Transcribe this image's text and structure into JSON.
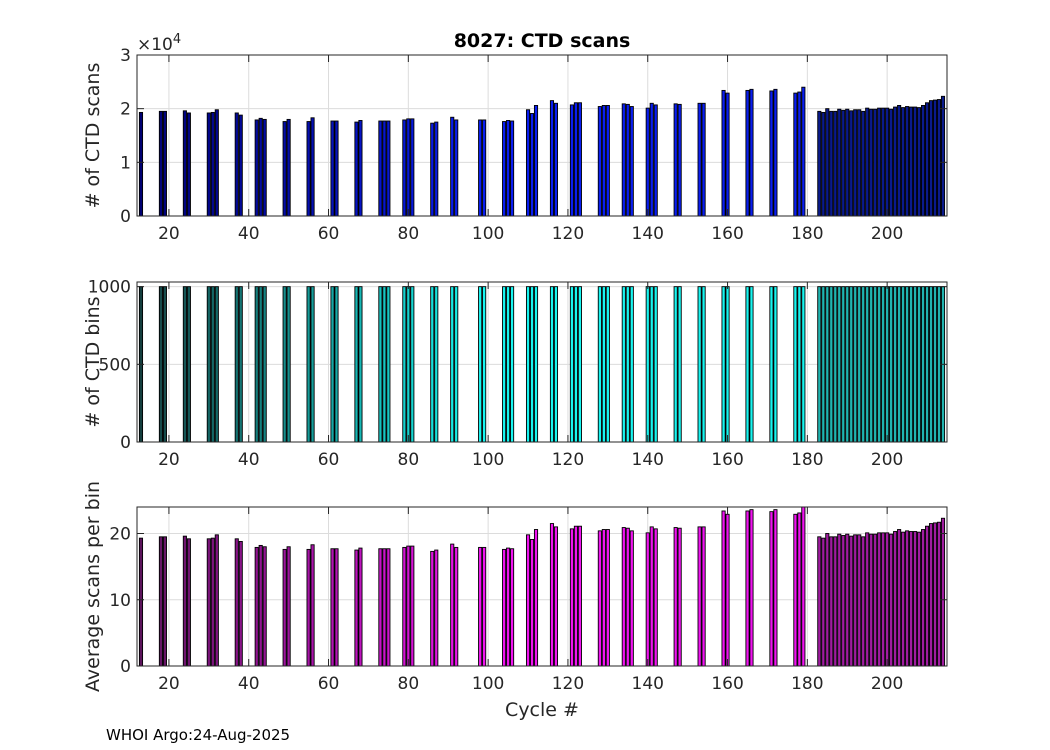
{
  "footer": "WHOI Argo:24-Aug-2025",
  "chart_data": [
    {
      "type": "bar",
      "title": "8027: CTD scans",
      "ylabel": "# of CTD scans",
      "xlabel": "",
      "xlim": [
        12,
        215
      ],
      "ylim": [
        0,
        3
      ],
      "yticks": [
        0,
        1,
        2,
        3
      ],
      "ytick_labels": [
        "0",
        "1",
        "2",
        "3"
      ],
      "xticks": [
        20,
        40,
        60,
        80,
        100,
        120,
        140,
        160,
        180,
        200
      ],
      "xtick_labels": [
        "20",
        "40",
        "60",
        "80",
        "100",
        "120",
        "140",
        "160",
        "180",
        "200"
      ],
      "exponent_label": "×10",
      "exponent_power": "4",
      "grid": true,
      "series": [
        {
          "name": "CTD scans",
          "color_start": "#000070",
          "color_mid": "#0a1ef0",
          "color_end": "#0a1a8c",
          "x": [
            13,
            18,
            19,
            24,
            25,
            30,
            31,
            32,
            37,
            38,
            42,
            43,
            44,
            49,
            50,
            55,
            56,
            61,
            62,
            67,
            68,
            73,
            74,
            75,
            79,
            80,
            81,
            86,
            87,
            91,
            92,
            98,
            99,
            104,
            105,
            106,
            110,
            111,
            112,
            116,
            117,
            121,
            122,
            123,
            128,
            129,
            130,
            134,
            135,
            136,
            140,
            141,
            142,
            147,
            148,
            153,
            154,
            159,
            160,
            165,
            166,
            171,
            172,
            177,
            178,
            179,
            183,
            184,
            185,
            186,
            187,
            188,
            189,
            190,
            191,
            192,
            193,
            194,
            195,
            196,
            197,
            198,
            199,
            200,
            201,
            202,
            203,
            204,
            205,
            206,
            207,
            208,
            209,
            210,
            211,
            212,
            213,
            214
          ],
          "values": [
            1.93,
            1.95,
            1.95,
            1.96,
            1.92,
            1.92,
            1.93,
            1.98,
            1.92,
            1.88,
            1.79,
            1.82,
            1.8,
            1.76,
            1.8,
            1.76,
            1.83,
            1.77,
            1.77,
            1.75,
            1.78,
            1.77,
            1.77,
            1.77,
            1.79,
            1.81,
            1.81,
            1.73,
            1.75,
            1.84,
            1.79,
            1.79,
            1.79,
            1.76,
            1.78,
            1.77,
            1.98,
            1.91,
            2.06,
            2.15,
            2.1,
            2.07,
            2.11,
            2.11,
            2.04,
            2.06,
            2.06,
            2.09,
            2.08,
            2.04,
            2.01,
            2.1,
            2.07,
            2.09,
            2.08,
            2.1,
            2.1,
            2.34,
            2.29,
            2.34,
            2.36,
            2.33,
            2.36,
            2.29,
            2.31,
            2.4,
            1.95,
            1.93,
            2.0,
            1.95,
            1.95,
            1.99,
            1.97,
            1.99,
            1.96,
            1.98,
            1.98,
            1.95,
            2.01,
            1.99,
            1.99,
            2.01,
            2.01,
            2.01,
            1.99,
            2.03,
            2.06,
            2.02,
            2.04,
            2.03,
            2.03,
            2.02,
            2.06,
            2.11,
            2.15,
            2.16,
            2.17,
            2.23
          ]
        }
      ]
    },
    {
      "type": "bar",
      "title": "",
      "ylabel": "# of CTD bins",
      "xlabel": "",
      "xlim": [
        12,
        215
      ],
      "ylim": [
        0,
        1030
      ],
      "yticks": [
        0,
        500,
        1000
      ],
      "ytick_labels": [
        "0",
        "500",
        "1000"
      ],
      "xticks": [
        20,
        40,
        60,
        80,
        100,
        120,
        140,
        160,
        180,
        200
      ],
      "xtick_labels": [
        "20",
        "40",
        "60",
        "80",
        "100",
        "120",
        "140",
        "160",
        "180",
        "200"
      ],
      "grid": true,
      "series": [
        {
          "name": "CTD bins",
          "color_start": "#143c3c",
          "color_mid": "#18f5f0",
          "color_end": "#20b4b0",
          "x": [
            13,
            18,
            19,
            24,
            25,
            30,
            31,
            32,
            37,
            38,
            42,
            43,
            44,
            49,
            50,
            55,
            56,
            61,
            62,
            67,
            68,
            73,
            74,
            75,
            79,
            80,
            81,
            86,
            87,
            91,
            92,
            98,
            99,
            104,
            105,
            106,
            110,
            111,
            112,
            116,
            117,
            121,
            122,
            123,
            128,
            129,
            130,
            134,
            135,
            136,
            140,
            141,
            142,
            147,
            148,
            153,
            154,
            159,
            160,
            165,
            166,
            171,
            172,
            177,
            178,
            179,
            183,
            184,
            185,
            186,
            187,
            188,
            189,
            190,
            191,
            192,
            193,
            194,
            195,
            196,
            197,
            198,
            199,
            200,
            201,
            202,
            203,
            204,
            205,
            206,
            207,
            208,
            209,
            210,
            211,
            212,
            213,
            214
          ],
          "values": [
            1000,
            1000,
            1000,
            1000,
            1000,
            1000,
            1000,
            1000,
            1000,
            1000,
            1000,
            1000,
            1000,
            1000,
            1000,
            1000,
            1000,
            1000,
            1000,
            1000,
            1000,
            1000,
            1000,
            1000,
            1000,
            1000,
            1000,
            1000,
            1000,
            1000,
            1000,
            1000,
            1000,
            1000,
            1000,
            1000,
            1000,
            1000,
            1000,
            1000,
            1000,
            1000,
            1000,
            1000,
            1000,
            1000,
            1000,
            1000,
            1000,
            1000,
            1000,
            1000,
            1000,
            1000,
            1000,
            1000,
            1000,
            1000,
            1000,
            1000,
            1000,
            1000,
            1000,
            1000,
            1000,
            1000,
            1000,
            1000,
            1000,
            1000,
            1000,
            1000,
            1000,
            1000,
            1000,
            1000,
            1000,
            1000,
            1000,
            1000,
            1000,
            1000,
            1000,
            1000,
            1000,
            1000,
            1000,
            1000,
            1000,
            1000,
            1000,
            1000,
            1000,
            1000,
            1000,
            1000,
            1000,
            1000
          ]
        }
      ]
    },
    {
      "type": "bar",
      "title": "",
      "ylabel": "Average scans per bin",
      "xlabel": "Cycle #",
      "xlim": [
        12,
        215
      ],
      "ylim": [
        0,
        24
      ],
      "yticks": [
        0,
        10,
        20
      ],
      "ytick_labels": [
        "0",
        "10",
        "20"
      ],
      "xticks": [
        20,
        40,
        60,
        80,
        100,
        120,
        140,
        160,
        180,
        200
      ],
      "xtick_labels": [
        "20",
        "40",
        "60",
        "80",
        "100",
        "120",
        "140",
        "160",
        "180",
        "200"
      ],
      "grid": true,
      "series": [
        {
          "name": "Average scans per bin",
          "color_start": "#5a145a",
          "color_mid": "#f014f0",
          "color_end": "#a01ca0",
          "x": [
            13,
            18,
            19,
            24,
            25,
            30,
            31,
            32,
            37,
            38,
            42,
            43,
            44,
            49,
            50,
            55,
            56,
            61,
            62,
            67,
            68,
            73,
            74,
            75,
            79,
            80,
            81,
            86,
            87,
            91,
            92,
            98,
            99,
            104,
            105,
            106,
            110,
            111,
            112,
            116,
            117,
            121,
            122,
            123,
            128,
            129,
            130,
            134,
            135,
            136,
            140,
            141,
            142,
            147,
            148,
            153,
            154,
            159,
            160,
            165,
            166,
            171,
            172,
            177,
            178,
            179,
            183,
            184,
            185,
            186,
            187,
            188,
            189,
            190,
            191,
            192,
            193,
            194,
            195,
            196,
            197,
            198,
            199,
            200,
            201,
            202,
            203,
            204,
            205,
            206,
            207,
            208,
            209,
            210,
            211,
            212,
            213,
            214
          ],
          "values": [
            19.3,
            19.5,
            19.5,
            19.6,
            19.2,
            19.2,
            19.3,
            19.8,
            19.2,
            18.8,
            17.9,
            18.2,
            18.0,
            17.6,
            18.0,
            17.6,
            18.3,
            17.7,
            17.7,
            17.5,
            17.8,
            17.7,
            17.7,
            17.7,
            17.9,
            18.1,
            18.1,
            17.3,
            17.5,
            18.4,
            17.9,
            17.9,
            17.9,
            17.6,
            17.8,
            17.7,
            19.8,
            19.1,
            20.6,
            21.5,
            21.0,
            20.7,
            21.1,
            21.1,
            20.4,
            20.6,
            20.6,
            20.9,
            20.8,
            20.4,
            20.1,
            21.0,
            20.7,
            20.9,
            20.8,
            21.0,
            21.0,
            23.4,
            22.9,
            23.4,
            23.6,
            23.3,
            23.6,
            22.9,
            23.1,
            24.0,
            19.5,
            19.3,
            20.0,
            19.5,
            19.5,
            19.9,
            19.7,
            19.9,
            19.6,
            19.8,
            19.8,
            19.5,
            20.1,
            19.9,
            19.9,
            20.1,
            20.1,
            20.1,
            19.9,
            20.3,
            20.6,
            20.2,
            20.4,
            20.3,
            20.3,
            20.2,
            20.6,
            21.1,
            21.5,
            21.6,
            21.7,
            22.3
          ]
        }
      ]
    }
  ]
}
